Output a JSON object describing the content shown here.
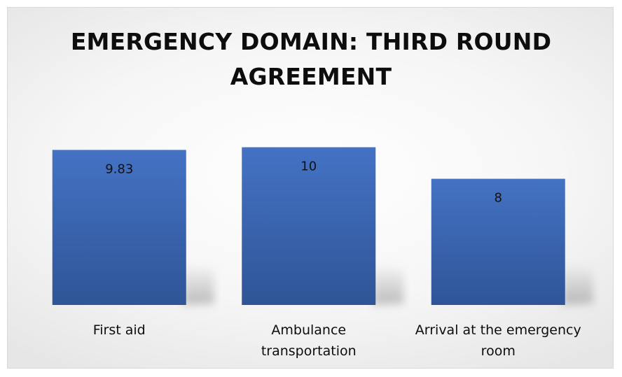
{
  "chart_data": {
    "type": "bar",
    "title_lines": [
      "EMERGENCY DOMAIN: THIRD ROUND",
      "AGREEMENT"
    ],
    "categories": [
      [
        "First aid"
      ],
      [
        "Ambulance",
        "transportation"
      ],
      [
        "Arrival at the emergency",
        "room"
      ]
    ],
    "values": [
      9.83,
      10,
      8
    ],
    "data_labels": [
      "9.83",
      "10",
      "8"
    ],
    "ylim": [
      0,
      10.2
    ],
    "grid": false,
    "legend": "none",
    "colors": {
      "bar_top": "#4472c4",
      "bar_bottom": "#2f5597",
      "shadow": "#9a9a9a"
    }
  }
}
